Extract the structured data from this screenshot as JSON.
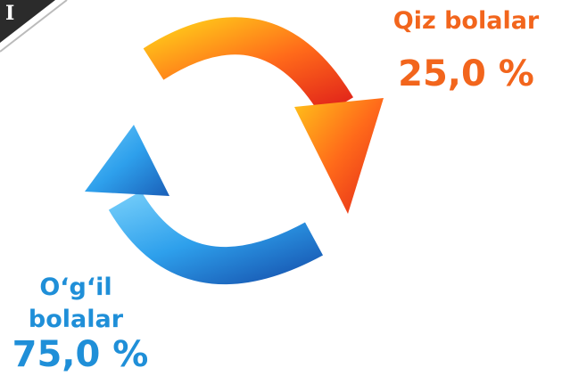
{
  "corner": {
    "text": "I"
  },
  "girls": {
    "label": "Qiz bolalar",
    "share": "25,0 %"
  },
  "boys": {
    "label": "O‘g‘il bolalar",
    "share": "75,0 %"
  }
}
